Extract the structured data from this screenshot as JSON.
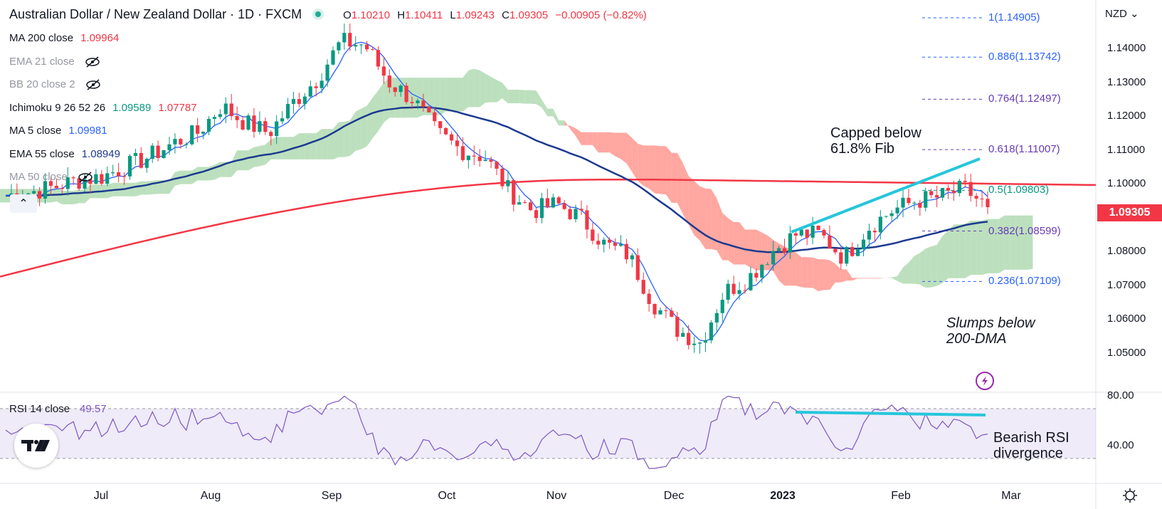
{
  "header": {
    "title": "Australian Dollar / New Zealand Dollar · 1D · FXCM",
    "ohlc": [
      {
        "k": "O",
        "v": "1.10210"
      },
      {
        "k": "H",
        "v": "1.10411"
      },
      {
        "k": "L",
        "v": "1.09243"
      },
      {
        "k": "C",
        "v": "1.09305"
      },
      {
        "k": "",
        "v": "−0.00905 (−0.82%)"
      }
    ]
  },
  "currency": "NZD",
  "indicators": [
    {
      "label": "MA 200 close",
      "value": "1.09964",
      "value2": "",
      "color": "#f23645",
      "muted": false,
      "hidden": false
    },
    {
      "label": "EMA 21 close",
      "value": "",
      "value2": "",
      "color": "#9598a1",
      "muted": true,
      "hidden": true
    },
    {
      "label": "BB 20 close 2",
      "value": "",
      "value2": "",
      "color": "#9598a1",
      "muted": true,
      "hidden": true
    },
    {
      "label": "Ichimoku 9 26 52 26",
      "value": "1.09589",
      "value2": "1.07787",
      "color": "#089981",
      "color2": "#f23645",
      "muted": false,
      "hidden": false
    },
    {
      "label": "MA 5 close",
      "value": "1.09981",
      "value2": "",
      "color": "#2962ff",
      "muted": false,
      "hidden": false
    },
    {
      "label": "EMA 55 close",
      "value": "1.08949",
      "value2": "",
      "color": "#1c3a8f",
      "muted": false,
      "hidden": false
    },
    {
      "label": "MA 50 close",
      "value": "",
      "value2": "",
      "color": "#9598a1",
      "muted": true,
      "hidden": true
    }
  ],
  "rsi_legend": {
    "label": "RSI 14 close",
    "value": "49.57"
  },
  "price_axis": [
    "1.14000",
    "1.13000",
    "1.12000",
    "1.11000",
    "1.10000",
    "1.09000",
    "1.08000",
    "1.07000",
    "1.06000",
    "1.05000"
  ],
  "rsi_axis": [
    "80.00",
    "40.00"
  ],
  "last_price": "1.09305",
  "fib_levels": [
    {
      "label": "1(1.14905)",
      "price": 1.14905,
      "color": "#2962ff"
    },
    {
      "label": "0.886(1.13742)",
      "price": 1.13742,
      "color": "#2962ff"
    },
    {
      "label": "0.764(1.12497)",
      "price": 1.12497,
      "color": "#673ab7"
    },
    {
      "label": "0.618(1.11007)",
      "price": 1.11007,
      "color": "#673ab7"
    },
    {
      "label": "0.5(1.09803)",
      "price": 1.09803,
      "color": "#089981"
    },
    {
      "label": "0.382(1.08599)",
      "price": 1.08599,
      "color": "#673ab7"
    },
    {
      "label": "0.236(1.07109)",
      "price": 1.07109,
      "color": "#2962ff"
    }
  ],
  "x_labels": [
    "Jul",
    "Aug",
    "Sep",
    "Oct",
    "Nov",
    "Dec",
    "2023",
    "Feb",
    "Mar"
  ],
  "annotations": {
    "capped": [
      "Capped below",
      "61.8% Fib"
    ],
    "slumps": [
      "Slumps below",
      "200-DMA"
    ],
    "bearish": [
      "Bearish RSI",
      "divergence"
    ]
  },
  "colors": {
    "up": "#089981",
    "down": "#f23645",
    "ma5": "#2962ff",
    "ema55": "#1c3a8f",
    "ma200": "#f23645",
    "rsi": "#7e57c2",
    "trend": "#26c6da",
    "cloud_bull": "#a5d6a7",
    "cloud_bear": "#ff8a80"
  },
  "chart_data": {
    "type": "candlestick",
    "title": "Australian Dollar / New Zealand Dollar · 1D · FXCM",
    "x_range": [
      "2022-06-15",
      "2023-02-24"
    ],
    "y_range": [
      1.045,
      1.15
    ],
    "closes_weekly": [
      1.0965,
      1.0975,
      1.099,
      1.101,
      1.102,
      1.105,
      1.108,
      1.112,
      1.115,
      1.123,
      1.118,
      1.115,
      1.124,
      1.131,
      1.142,
      1.141,
      1.13,
      1.125,
      1.115,
      1.11,
      1.108,
      1.098,
      1.092,
      1.094,
      1.09,
      1.082,
      1.079,
      1.065,
      1.057,
      1.053,
      1.068,
      1.072,
      1.08,
      1.085,
      1.085,
      1.078,
      1.087,
      1.092,
      1.095,
      1.096,
      1.0985,
      1.093
    ],
    "series": [
      {
        "name": "MA 200 close",
        "start": 1.0725,
        "end": 1.0996
      },
      {
        "name": "MA 5 close",
        "last": 1.09981
      },
      {
        "name": "EMA 55 close",
        "last": 1.08949
      }
    ],
    "rsi": {
      "name": "RSI 14 close",
      "last": 49.57,
      "levels": [
        70,
        30
      ]
    }
  }
}
